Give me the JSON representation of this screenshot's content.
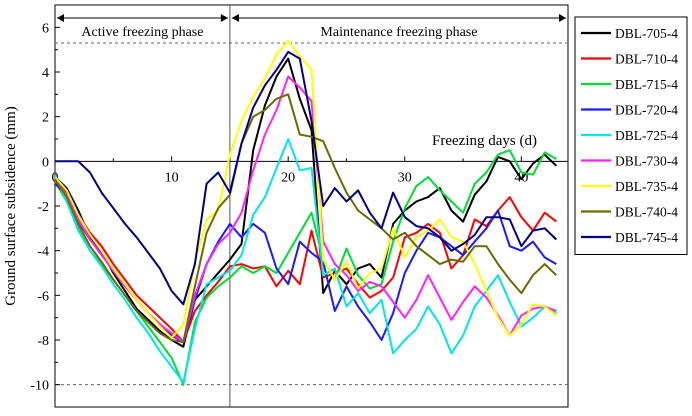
{
  "chart_data": {
    "type": "line",
    "title": "",
    "xlabel": "Freezing days (d)",
    "ylabel": "Ground surface subsidence (mm)",
    "xlim": [
      0,
      44
    ],
    "ylim": [
      -11,
      7
    ],
    "x_ticks": [
      0,
      10,
      20,
      30,
      40
    ],
    "y_ticks": [
      6,
      4,
      2,
      0,
      -2,
      -4,
      -6,
      -8,
      -10
    ],
    "grid": false,
    "legend_position": "right-outside",
    "phase_divider_x": 15,
    "phases": [
      {
        "label": "Active freezing phase",
        "x_start": 0,
        "x_end": 15
      },
      {
        "label": "Maintenance freezing phase",
        "x_start": 15,
        "x_end": 44
      }
    ],
    "reference_lines": [
      5.3,
      -10
    ],
    "x": [
      0,
      1,
      2,
      3,
      4,
      5,
      6,
      7,
      8,
      9,
      10,
      11,
      12,
      13,
      14,
      15,
      16,
      17,
      18,
      19,
      20,
      21,
      22,
      23,
      24,
      25,
      26,
      27,
      28,
      29,
      30,
      31,
      32,
      33,
      34,
      35,
      36,
      37,
      38,
      39,
      40,
      41,
      42,
      43
    ],
    "series": [
      {
        "name": "DBL-705-4",
        "color": "#000000",
        "values": [
          -0.7,
          -1.2,
          -2.2,
          -3.4,
          -4.0,
          -5.0,
          -5.8,
          -6.6,
          -7.1,
          -7.6,
          -8.0,
          -8.3,
          -6.2,
          -5.6,
          -5.0,
          -4.4,
          -3.7,
          0.5,
          2.5,
          3.8,
          4.6,
          2.8,
          1.4,
          -5.9,
          -4.9,
          -5.5,
          -4.8,
          -4.6,
          -5.2,
          -2.8,
          -2.2,
          -1.8,
          -1.6,
          -1.2,
          -2.2,
          -2.7,
          -1.5,
          -0.9,
          0.2,
          0.0,
          -0.8,
          -0.1,
          0.3,
          -0.2
        ]
      },
      {
        "name": "DBL-710-4",
        "color": "#ff0000",
        "values": [
          -0.8,
          -1.4,
          -2.4,
          -3.2,
          -3.8,
          -4.6,
          -5.3,
          -6.0,
          -6.5,
          -7.0,
          -7.5,
          -8.1,
          -6.7,
          -6.0,
          -5.4,
          -4.7,
          -4.6,
          -4.8,
          -4.7,
          -5.6,
          -4.9,
          -5.5,
          -3.1,
          -5.2,
          -5.0,
          -4.8,
          -5.5,
          -6.1,
          -5.8,
          -5.2,
          -3.4,
          -3.2,
          -2.8,
          -3.2,
          -4.8,
          -4.2,
          -2.6,
          -2.9,
          -2.2,
          -1.6,
          -2.5,
          -3.1,
          -2.3,
          -2.7
        ]
      },
      {
        "name": "DBL-715-4",
        "color": "#00dd33",
        "values": [
          -0.9,
          -1.8,
          -3.0,
          -4.0,
          -4.6,
          -5.3,
          -6.0,
          -6.7,
          -7.4,
          -8.1,
          -8.8,
          -10.0,
          -7.2,
          -6.1,
          -5.6,
          -5.2,
          -4.7,
          -5.0,
          -4.7,
          -5.0,
          -4.1,
          -3.2,
          -2.3,
          -4.4,
          -5.3,
          -3.9,
          -5.1,
          -5.7,
          -5.5,
          -3.6,
          -2.1,
          -1.1,
          -0.7,
          -1.3,
          -1.8,
          -2.3,
          -1.0,
          -0.5,
          0.3,
          0.5,
          -0.5,
          -0.6,
          0.4,
          0.1
        ]
      },
      {
        "name": "DBL-720-4",
        "color": "#1a1aff",
        "values": [
          -1.0,
          -1.5,
          -2.7,
          -3.5,
          -4.1,
          -4.8,
          -5.5,
          -6.2,
          -6.8,
          -7.3,
          -7.8,
          -8.1,
          -6.2,
          -4.6,
          -3.6,
          -2.8,
          -3.4,
          -2.8,
          -3.2,
          -4.8,
          -5.5,
          -3.6,
          -4.1,
          -4.5,
          -6.7,
          -5.6,
          -6.5,
          -7.2,
          -8.0,
          -6.8,
          -5.0,
          -4.0,
          -3.2,
          -3.4,
          -3.8,
          -4.2,
          -3.6,
          -3.0,
          -2.2,
          -3.8,
          -4.0,
          -3.6,
          -4.3,
          -4.6
        ]
      },
      {
        "name": "DBL-725-4",
        "color": "#00e6e6",
        "values": [
          -0.6,
          -1.8,
          -3.1,
          -4.0,
          -4.7,
          -5.5,
          -6.2,
          -7.0,
          -7.7,
          -8.5,
          -9.2,
          -9.9,
          -7.5,
          -5.5,
          -5.2,
          -4.9,
          -4.2,
          -2.4,
          -1.6,
          -0.3,
          1.0,
          -0.4,
          -0.3,
          -5.1,
          -4.8,
          -6.5,
          -5.9,
          -6.8,
          -6.2,
          -8.6,
          -8.0,
          -7.5,
          -6.5,
          -7.3,
          -8.6,
          -7.8,
          -6.5,
          -5.8,
          -5.1,
          -6.3,
          -7.4,
          -7.0,
          -6.5,
          -6.8
        ]
      },
      {
        "name": "DBL-730-4",
        "color": "#ff22ff",
        "values": [
          -0.8,
          -1.5,
          -2.6,
          -3.5,
          -4.2,
          -4.9,
          -5.6,
          -6.2,
          -6.8,
          -7.3,
          -7.7,
          -8.1,
          -6.0,
          -4.6,
          -3.7,
          -3.2,
          -2.3,
          -0.4,
          1.2,
          2.3,
          3.8,
          3.3,
          2.7,
          -3.6,
          -4.6,
          -5.1,
          -5.8,
          -5.4,
          -5.6,
          -6.3,
          -7.0,
          -6.2,
          -5.1,
          -6.1,
          -7.1,
          -6.3,
          -5.6,
          -6.1,
          -6.9,
          -7.8,
          -6.9,
          -6.6,
          -6.5,
          -6.7
        ]
      },
      {
        "name": "DBL-735-4",
        "color": "#ffff00",
        "values": [
          -0.7,
          -1.3,
          -2.4,
          -3.3,
          -4.0,
          -4.8,
          -5.5,
          -6.2,
          -6.8,
          -7.4,
          -7.9,
          -7.3,
          -4.5,
          -2.6,
          -2.2,
          0.3,
          1.8,
          2.9,
          3.7,
          4.8,
          5.4,
          4.7,
          4.1,
          -4.4,
          -5.3,
          -4.5,
          -5.7,
          -5.0,
          -4.8,
          -3.0,
          -4.3,
          -3.4,
          -3.1,
          -2.6,
          -3.4,
          -3.6,
          -4.6,
          -5.8,
          -7.0,
          -7.8,
          -7.3,
          -6.4,
          -6.5,
          -6.9
        ]
      },
      {
        "name": "DBL-740-4",
        "color": "#6b6b00",
        "values": [
          -0.8,
          -1.6,
          -2.8,
          -3.8,
          -4.5,
          -5.3,
          -6.0,
          -6.7,
          -7.2,
          -7.7,
          -8.0,
          -8.1,
          -5.6,
          -3.2,
          -2.1,
          -1.5,
          0.8,
          2.0,
          2.3,
          2.8,
          3.0,
          1.2,
          1.1,
          0.9,
          -0.3,
          -1.4,
          -2.2,
          -2.6,
          -3.0,
          -3.5,
          -3.2,
          -3.8,
          -4.2,
          -4.6,
          -4.4,
          -4.5,
          -3.8,
          -3.8,
          -4.6,
          -5.3,
          -5.9,
          -5.1,
          -4.6,
          -5.1
        ]
      },
      {
        "name": "DBL-745-4",
        "color": "#000080",
        "values": [
          0.0,
          0.0,
          0.0,
          -0.5,
          -1.4,
          -2.1,
          -2.8,
          -3.4,
          -4.1,
          -4.8,
          -5.8,
          -6.4,
          -4.6,
          -1.0,
          -0.5,
          -1.4,
          0.8,
          2.4,
          3.4,
          4.1,
          4.9,
          4.6,
          1.8,
          -2.0,
          -1.2,
          -1.8,
          -1.3,
          -2.3,
          -3.0,
          -1.4,
          -2.5,
          -2.9,
          -3.0,
          -3.4,
          -4.0,
          -3.7,
          -3.3,
          -2.5,
          -2.5,
          -2.6,
          -3.8,
          -3.1,
          -3.0,
          -3.5
        ]
      }
    ]
  }
}
